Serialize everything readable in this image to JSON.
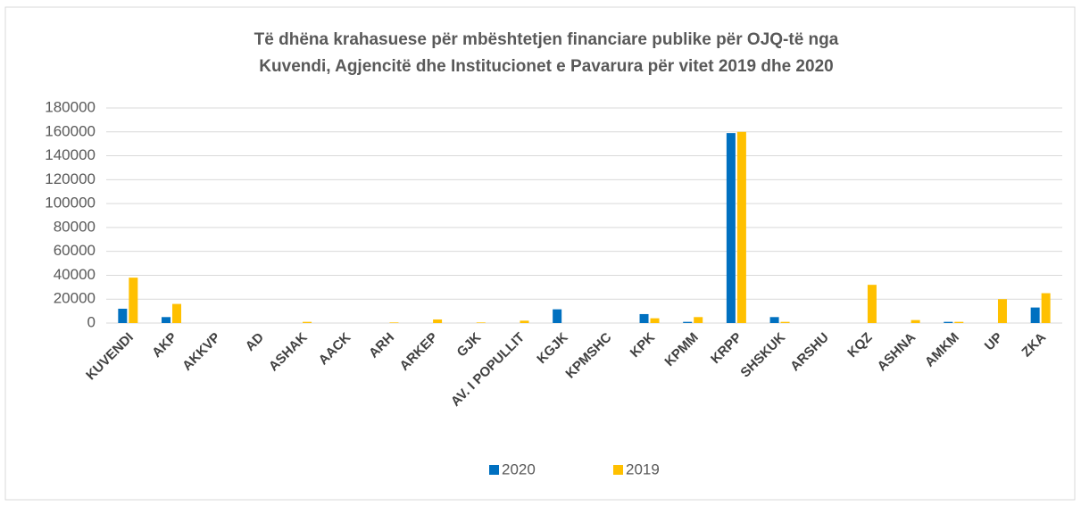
{
  "chart_data": {
    "type": "bar",
    "title": [
      "Të dhëna krahasuese për mbështetjen financiare publike për OJQ-të nga",
      "Kuvendi, Agjencitë dhe Institucionet e Pavarura për vitet 2019 dhe 2020"
    ],
    "categories": [
      "KUVENDI",
      "AKP",
      "AKKVP",
      "AD",
      "ASHAK",
      "AACK",
      "ARH",
      "ARKEP",
      "GJK",
      "AV. I POPULLIT",
      "KGJK",
      "KPMSHC",
      "KPK",
      "KPMM",
      "KRPP",
      "SHSKUK",
      "ARSHU",
      "KQZ",
      "ASHNA",
      "AMKM",
      "UP",
      "ZKA"
    ],
    "series": [
      {
        "name": "2020",
        "color": "#0070c0",
        "values": [
          12000,
          5000,
          0,
          0,
          0,
          0,
          0,
          0,
          0,
          0,
          11500,
          0,
          7500,
          1000,
          159000,
          5000,
          0,
          0,
          0,
          1000,
          0,
          13000
        ]
      },
      {
        "name": "2019",
        "color": "#ffc000",
        "values": [
          38000,
          16000,
          0,
          0,
          1000,
          0,
          500,
          3000,
          500,
          2000,
          0,
          0,
          4000,
          5000,
          160000,
          1000,
          0,
          32000,
          2500,
          1000,
          20000,
          25000
        ]
      }
    ],
    "ylim": [
      0,
      180000
    ],
    "yticks": [
      0,
      20000,
      40000,
      60000,
      80000,
      100000,
      120000,
      140000,
      160000,
      180000
    ],
    "grid": true,
    "legend": "bottom"
  }
}
